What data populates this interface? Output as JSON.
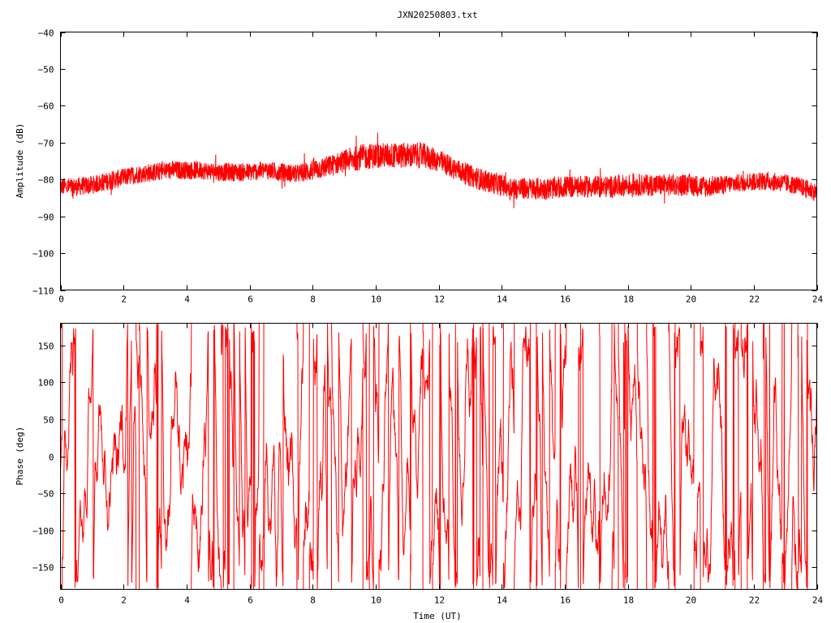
{
  "title": "JXN20250803.txt",
  "trace_color": "#ff0000",
  "chart_data": [
    {
      "type": "line",
      "ylabel": "Amplitude (dB)",
      "xlabel": "",
      "xlim": [
        0,
        24
      ],
      "ylim": [
        -110,
        -40
      ],
      "xticks": [
        0,
        2,
        4,
        6,
        8,
        10,
        12,
        14,
        16,
        18,
        20,
        22,
        24
      ],
      "yticks": [
        -40,
        -50,
        -60,
        -70,
        -80,
        -90,
        -100,
        -110
      ],
      "grid": false,
      "legend": "none",
      "series": [
        {
          "envelope_x": [
            0,
            0.5,
            1,
            1.5,
            2,
            2.5,
            3,
            3.5,
            4,
            4.5,
            5,
            5.5,
            6,
            6.5,
            7,
            7.5,
            8,
            8.5,
            9,
            9.5,
            10,
            10.5,
            11,
            11.5,
            12,
            12.5,
            13,
            13.5,
            14,
            14.5,
            15,
            15.5,
            16,
            16.5,
            17,
            17.5,
            18,
            18.5,
            19,
            19.5,
            20,
            20.5,
            21,
            21.5,
            22,
            22.5,
            23,
            23.5,
            24
          ],
          "envelope_mean": [
            -82,
            -82,
            -81.5,
            -80.5,
            -79.5,
            -78.5,
            -78,
            -77.5,
            -77.5,
            -77.5,
            -78,
            -78,
            -78,
            -77.5,
            -78,
            -78.5,
            -77.5,
            -76.5,
            -75,
            -74,
            -73.5,
            -73.5,
            -73.5,
            -73.5,
            -75,
            -77,
            -79,
            -80.5,
            -81.5,
            -82.5,
            -82.5,
            -82.5,
            -82,
            -82,
            -82,
            -82,
            -81.5,
            -81.5,
            -81.5,
            -81.5,
            -81.5,
            -82,
            -81.5,
            -81,
            -80.5,
            -80.5,
            -81,
            -82,
            -83.5
          ],
          "envelope_halfwidth": [
            2.5,
            2.5,
            2.5,
            2.5,
            2.5,
            2.5,
            2.5,
            2.5,
            2.5,
            2.5,
            2.5,
            2.5,
            2.5,
            2.5,
            2.5,
            2.5,
            3,
            3,
            3,
            3.5,
            3.5,
            3.5,
            3.5,
            3.5,
            3,
            3,
            3,
            3,
            3,
            3,
            3,
            3,
            3,
            3,
            3,
            3,
            3,
            3,
            3,
            3,
            3,
            3,
            2.5,
            2.5,
            2.5,
            2.5,
            2.5,
            2.5,
            2.5
          ]
        }
      ]
    },
    {
      "type": "line",
      "ylabel": "Phase (deg)",
      "xlabel": "Time (UT)",
      "xlim": [
        0,
        24
      ],
      "ylim": [
        -180,
        180
      ],
      "xticks": [
        0,
        2,
        4,
        6,
        8,
        10,
        12,
        14,
        16,
        18,
        20,
        22,
        24
      ],
      "yticks": [
        150,
        100,
        50,
        0,
        -50,
        -100,
        -150
      ],
      "grid": false,
      "legend": "none",
      "series": [
        {
          "description_values": "phase wraps between -180 and 180 throughout the day",
          "wrap_times": [
            0.05,
            2.4,
            2.5,
            3.05,
            3.1,
            4.15,
            5.1,
            5.3,
            5.5,
            6.05,
            6.3,
            6.45,
            7.5,
            7.7,
            7.9,
            8.6,
            9.6,
            9.8,
            10.1,
            11.1,
            11.5,
            11.8,
            12.05,
            13.1,
            13.4,
            14.05,
            14.4,
            14.9,
            15.1,
            15.7,
            16.05,
            16.5,
            17.1,
            17.5,
            17.7,
            17.9,
            18.3,
            18.6,
            18.8,
            19.3,
            19.5,
            20.1,
            20.3,
            21.1,
            21.4,
            21.6,
            21.8,
            22.3,
            22.9,
            23.2,
            23.4,
            23.7
          ]
        }
      ]
    }
  ]
}
